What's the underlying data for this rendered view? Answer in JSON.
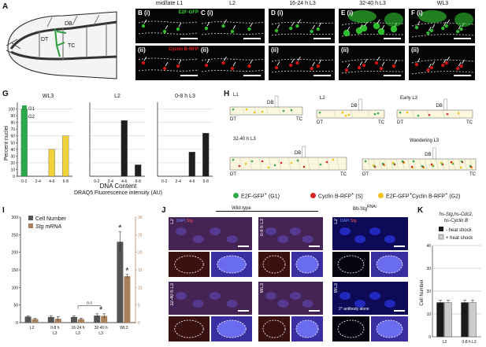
{
  "panels": {
    "A": "A",
    "B": "B",
    "C": "C",
    "D": "D",
    "E": "E",
    "F": "F",
    "G": "G",
    "H": "H",
    "I": "I",
    "J": "J",
    "K": "K"
  },
  "larva": {
    "labels": {
      "db": "DB",
      "dt": "DT",
      "tc": "TC"
    }
  },
  "micro": {
    "stages": [
      "mid/late L1",
      "L2",
      "16-24 h L3",
      "32-40 h L3",
      "WL3"
    ],
    "row_i": "(i)",
    "row_ii": "(ii)",
    "gfp_tag": "E2F-GFP",
    "rfp_tag": "Cyclin B-RFP",
    "colors": {
      "gfp": "#32d232",
      "rfp": "#e01818"
    }
  },
  "panelG": {
    "ylabel": "Percent nuclei",
    "xlabel": "DNA Content",
    "xsublabel": "DRAQ5 Fluorescence intensity (AU)",
    "legend": [
      "G1",
      "G2"
    ]
  },
  "panelH": {
    "stages": [
      "L1",
      "L2",
      "Early L3",
      "32-40 h L3",
      "Wandering L3"
    ],
    "labels": {
      "db": "DB",
      "dt": "DT",
      "tc": "TC"
    },
    "legend": [
      {
        "text": "E2F-GFP",
        "sup": "+",
        "tail": " (G1)"
      },
      {
        "text": "Cyclin B-RFP",
        "sup": "+",
        "tail": " (S)"
      },
      {
        "text": "E2F-GFP",
        "sup": "+",
        "tail": "Cyclin B-RFP",
        "sup2": "+",
        "tail2": " (G2)"
      }
    ],
    "colors": {
      "g1": "#2eaa4a",
      "s": "#d62727",
      "g2": "#f2c21a"
    }
  },
  "panelI": {
    "legend": [
      "Cell Number",
      "Stg mRNA"
    ],
    "ns": "n.s",
    "colors": {
      "cells": "#555555",
      "mrna": "#a9805a"
    }
  },
  "panelJ": {
    "wildtype": "Wild type",
    "rnai": "Btl-Stg",
    "rnai_sup": "RNAi",
    "dapi": "DAPI",
    "stg": "Stg",
    "rows": [
      "L2",
      "32-40 h L3"
    ],
    "rows2": [
      "0-8 h L3",
      "WL3"
    ],
    "rnai_rows": [
      "L2",
      "WL3"
    ],
    "antibody_note": "2° antibody alone"
  },
  "panelK": {
    "title_line1": "hs-Stg,hs-Cdc2,",
    "title_line2": "hs-Cyclin B",
    "legend": [
      "- heat shock",
      "+ heat shock"
    ],
    "ylabel": "Cell Number",
    "colors": {
      "minus": "#1a1a1a",
      "plus": "#cccccc"
    }
  },
  "chart_data": [
    {
      "type": "bar",
      "title": "WL3",
      "categories": [
        "0-2",
        "2-4",
        "4-6",
        "6-8"
      ],
      "series": [
        {
          "name": "G1",
          "values": [
            100,
            0,
            0,
            0
          ]
        },
        {
          "name": "G2",
          "values": [
            0,
            0,
            40,
            60
          ]
        }
      ],
      "ylim": [
        0,
        110
      ],
      "yticks": [
        0,
        10,
        20,
        30,
        40,
        50,
        60,
        70,
        80,
        90,
        100
      ],
      "colors": [
        "#2aa84a",
        "#f1d23a"
      ]
    },
    {
      "type": "bar",
      "title": "L2",
      "categories": [
        "0-2",
        "2-4",
        "4-6",
        "6-8"
      ],
      "series": [
        {
          "values": [
            0,
            0,
            83,
            17
          ]
        }
      ],
      "ylim": [
        0,
        110
      ],
      "colors": [
        "#1f1f1f"
      ]
    },
    {
      "type": "bar",
      "title": "0-8 h L3",
      "categories": [
        "0-2",
        "2-4",
        "4-6",
        "6-8"
      ],
      "series": [
        {
          "values": [
            0,
            0,
            36,
            64
          ]
        }
      ],
      "ylim": [
        0,
        110
      ],
      "colors": [
        "#1f1f1f"
      ]
    },
    {
      "type": "bar",
      "categories": [
        "L2",
        "0-8 h L3",
        "16-24 h L3",
        "32-40 h L3",
        "WL3"
      ],
      "category_lines": [
        [
          "L2"
        ],
        [
          "0-8 h",
          "L3"
        ],
        [
          "16-24 h",
          "L3"
        ],
        [
          "32-40 h",
          "L3"
        ],
        [
          "WL3"
        ]
      ],
      "series": [
        {
          "name": "Cell Number",
          "values": [
            17,
            16,
            16,
            20,
            230
          ],
          "errors": [
            2,
            4,
            3,
            5,
            28
          ]
        },
        {
          "name": "Stg mRNA",
          "values": [
            1.0,
            1.1,
            1.0,
            1.9,
            13.2
          ],
          "errors": [
            0.2,
            0.6,
            0.3,
            0.6,
            0.5
          ]
        }
      ],
      "ylim": [
        0,
        300
      ],
      "yticks": [
        0,
        50,
        100,
        150,
        200,
        250,
        300
      ],
      "y2lim": [
        0,
        30
      ],
      "y2ticks": [
        0,
        5,
        10,
        15,
        20,
        25,
        30
      ],
      "annotations": [
        "*",
        "*",
        "*",
        "n.s"
      ]
    },
    {
      "type": "bar",
      "categories": [
        "L2",
        "0-8 h L3"
      ],
      "series": [
        {
          "name": "- heat shock",
          "values": [
            15,
            15
          ],
          "errors": [
            1,
            1
          ]
        },
        {
          "name": "+ heat shock",
          "values": [
            15,
            15
          ],
          "errors": [
            1,
            1
          ]
        }
      ],
      "ylim": [
        0,
        40
      ],
      "yticks": [
        0,
        10,
        20,
        30,
        40
      ]
    }
  ]
}
